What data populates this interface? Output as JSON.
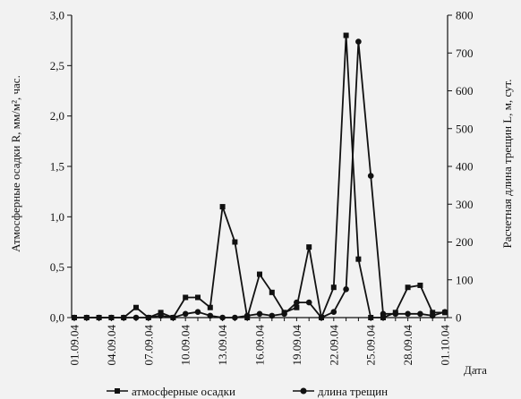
{
  "chart_data": {
    "type": "line",
    "xlabel": "Дата",
    "ylabel_left": "Атмосферные осадки R, мм/м², час.",
    "ylabel_right": "Расчетная длина трещин L, м, сут.",
    "ylim_left": [
      0,
      3.0
    ],
    "ylim_right": [
      0,
      800
    ],
    "left_ticks": [
      "0,0",
      "0,5",
      "1,0",
      "1,5",
      "2,0",
      "2,5",
      "3,0"
    ],
    "right_ticks": [
      "0",
      "100",
      "200",
      "300",
      "400",
      "500",
      "600",
      "700",
      "800"
    ],
    "x_tick_labels": [
      "01.09.04",
      "04.09.04",
      "07.09.04",
      "10.09.04",
      "13.09.04",
      "16.09.04",
      "19.09.04",
      "22.09.04",
      "25.09.04",
      "28.09.04",
      "01.10.04"
    ],
    "x": [
      "01.09.04",
      "02.09.04",
      "03.09.04",
      "04.09.04",
      "05.09.04",
      "06.09.04",
      "07.09.04",
      "08.09.04",
      "09.09.04",
      "10.09.04",
      "11.09.04",
      "12.09.04",
      "13.09.04",
      "14.09.04",
      "15.09.04",
      "16.09.04",
      "17.09.04",
      "18.09.04",
      "19.09.04",
      "20.09.04",
      "21.09.04",
      "22.09.04",
      "23.09.04",
      "24.09.04",
      "25.09.04",
      "26.09.04",
      "27.09.04",
      "28.09.04",
      "29.09.04",
      "30.09.04",
      "01.10.04"
    ],
    "series": [
      {
        "name": "атмосферные осадки",
        "axis": "left",
        "marker": "square",
        "values": [
          0,
          0,
          0,
          0,
          0,
          0.1,
          0,
          0.05,
          0,
          0.2,
          0.2,
          0.1,
          1.1,
          0.75,
          0,
          0.43,
          0.25,
          0.05,
          0.1,
          0.7,
          0,
          0.3,
          2.8,
          0.58,
          0,
          0,
          0.05,
          0.3,
          0.32,
          0.05,
          0.05
        ]
      },
      {
        "name": "длина трещин",
        "axis": "right",
        "marker": "circle",
        "values": [
          0,
          0,
          0,
          0,
          0,
          0,
          0,
          5,
          0,
          10,
          15,
          5,
          0,
          0,
          5,
          10,
          5,
          10,
          40,
          40,
          0,
          15,
          75,
          730,
          375,
          10,
          10,
          10,
          10,
          5,
          15
        ]
      }
    ],
    "legend_position": "bottom",
    "grid": false
  }
}
